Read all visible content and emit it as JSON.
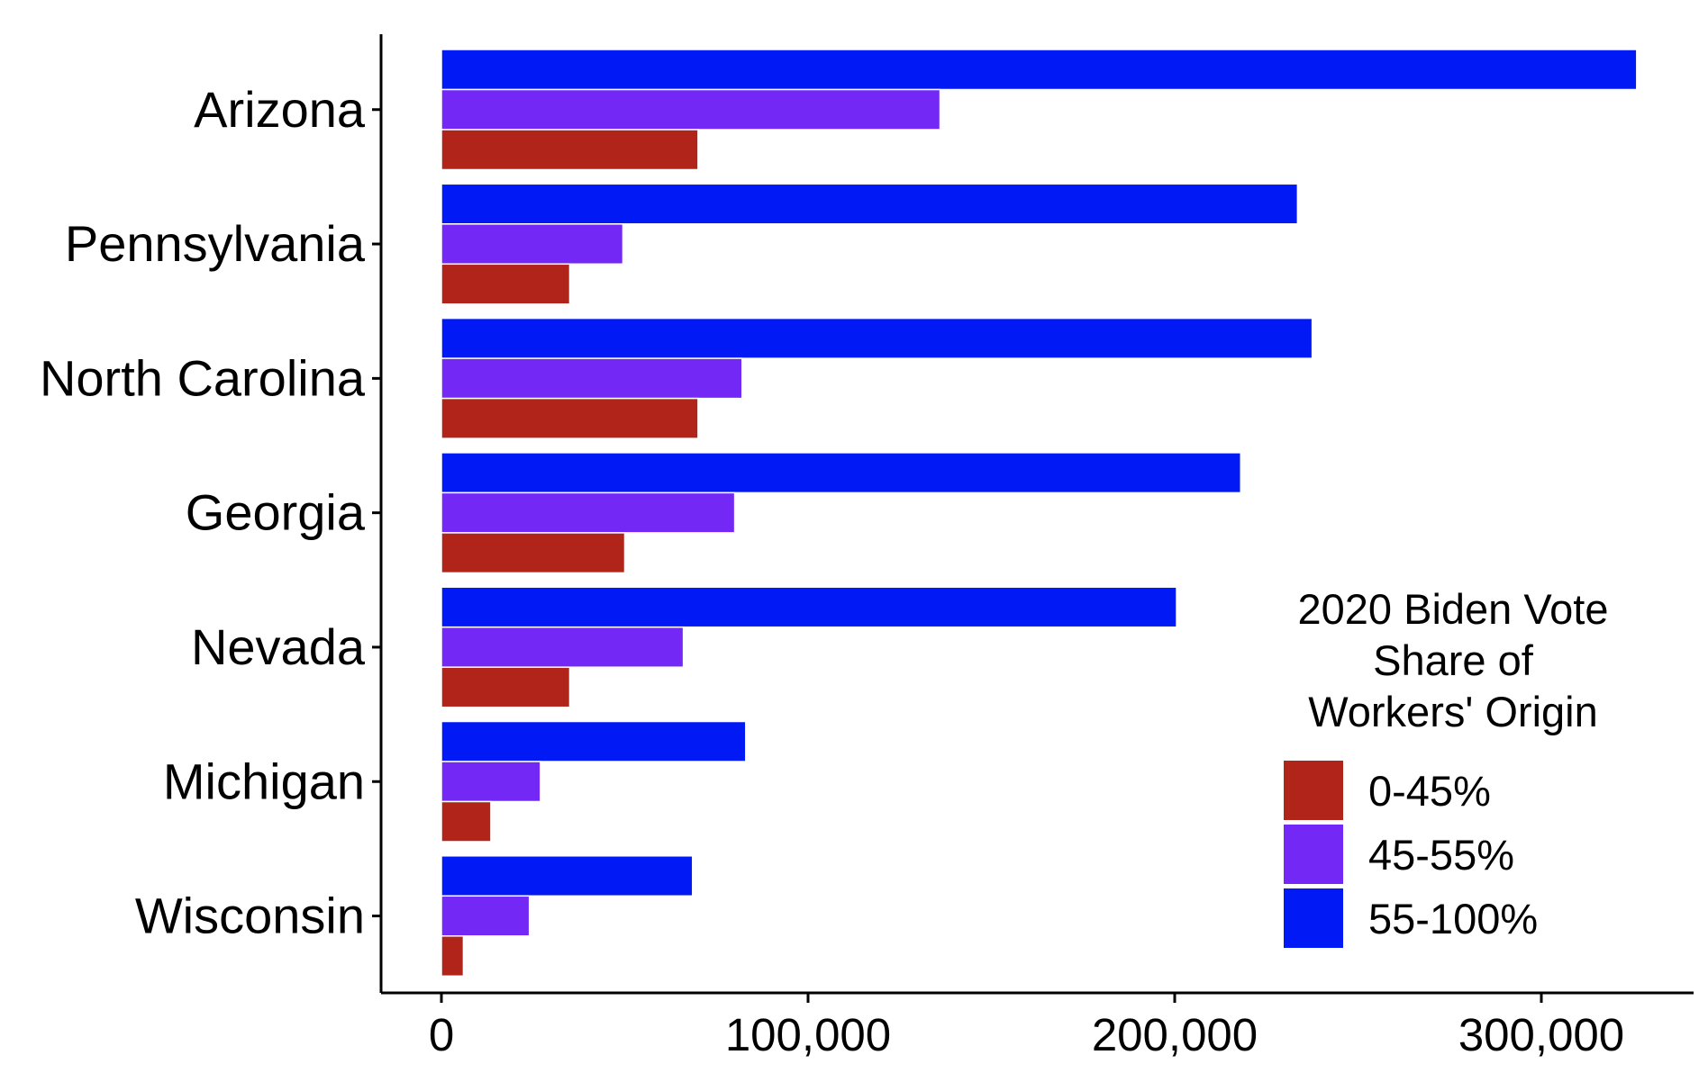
{
  "chart_data": {
    "type": "bar",
    "orientation": "horizontal",
    "categories": [
      "Arizona",
      "Pennsylvania",
      "North Carolina",
      "Georgia",
      "Nevada",
      "Michigan",
      "Wisconsin"
    ],
    "series": [
      {
        "name": "0-45%",
        "color": "#B0241A",
        "values": [
          70000,
          35000,
          70000,
          50000,
          35000,
          13500,
          6000
        ]
      },
      {
        "name": "45-55%",
        "color": "#7328F5",
        "values": [
          136000,
          49500,
          82000,
          80000,
          66000,
          27000,
          24000
        ]
      },
      {
        "name": "55-100%",
        "color": "#0019F5",
        "values": [
          326000,
          233500,
          237500,
          218000,
          200500,
          83000,
          68500
        ]
      }
    ],
    "xlim": [
      0,
      340000
    ],
    "x_ticks": [
      0,
      100000,
      200000,
      300000
    ],
    "x_tick_labels": [
      "0",
      "100,000",
      "200,000",
      "300,000"
    ],
    "legend": {
      "title_lines": [
        "2020 Biden Vote",
        "Share of",
        "Workers' Origin"
      ],
      "items": [
        "0-45%",
        "45-55%",
        "55-100%"
      ],
      "placement": "right"
    },
    "grid": false
  }
}
